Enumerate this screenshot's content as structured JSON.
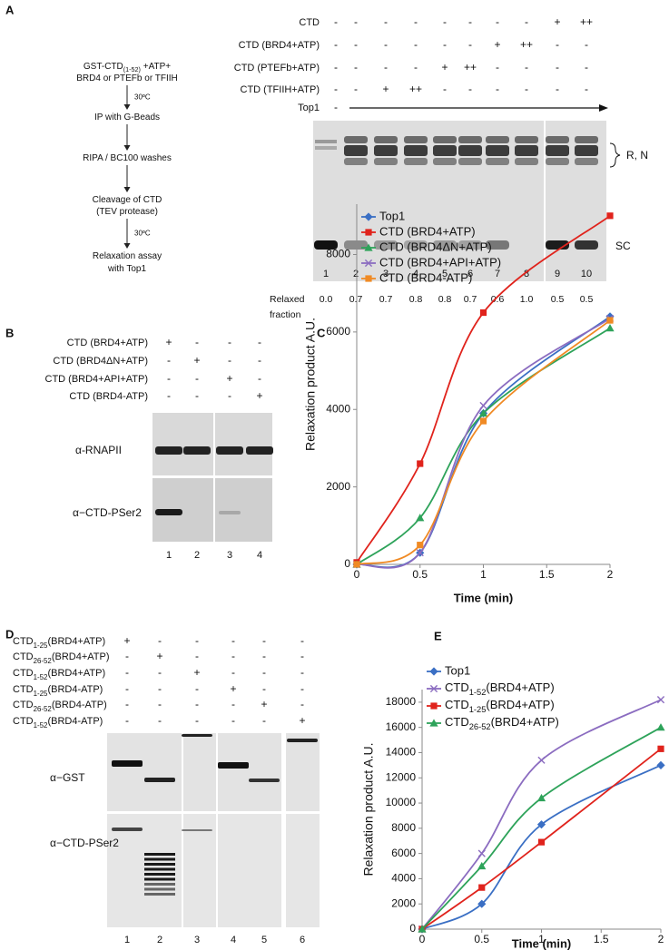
{
  "panel_a": {
    "label": "A",
    "flow": [
      {
        "lines": [
          [
            "GST-CTD",
            "(1-52)",
            " +ATP+"
          ],
          [
            "BRD4 or PTEFb or TFIIH"
          ]
        ],
        "arrow_label": "30ºC"
      },
      {
        "lines": [
          [
            "IP with G-Beads"
          ]
        ]
      },
      {
        "lines": [
          [
            "RIPA / BC100 washes"
          ]
        ]
      },
      {
        "lines": [
          [
            "Cleavage of CTD"
          ],
          [
            "(TEV protease)"
          ]
        ],
        "arrow_label": "30ºC"
      },
      {
        "lines": [
          [
            "Relaxation assay"
          ],
          [
            "with Top1"
          ]
        ]
      }
    ],
    "conditions": [
      {
        "label": "CTD",
        "marks": [
          "-",
          "-",
          "-",
          "-",
          "-",
          "-",
          "-",
          "-",
          "+",
          "++"
        ]
      },
      {
        "label": "CTD (BRD4+ATP)",
        "marks": [
          "-",
          "-",
          "-",
          "-",
          "-",
          "-",
          "+",
          "++",
          "-",
          "-"
        ]
      },
      {
        "label": "CTD (PTEFb+ATP)",
        "marks": [
          "-",
          "-",
          "-",
          "-",
          "+",
          "++",
          "-",
          "-",
          "-",
          "-"
        ]
      },
      {
        "label": "CTD (TFIIH+ATP)",
        "marks": [
          "-",
          "-",
          "+",
          "++",
          "-",
          "-",
          "-",
          "-",
          "-",
          "-"
        ]
      },
      {
        "label": "Top1",
        "marks": [
          "-"
        ]
      }
    ],
    "band_labels": [
      "R, N",
      "SC"
    ],
    "lanes": [
      "1",
      "2",
      "3",
      "4",
      "5",
      "6",
      "7",
      "8",
      "9",
      "10"
    ],
    "relaxed_label": [
      "Relaxed",
      "fraction"
    ],
    "relaxed_fraction": [
      "0.0",
      "0.7",
      "0.7",
      "0.8",
      "0.8",
      "0.7",
      "0.6",
      "1.0",
      "0.5",
      "0.5"
    ]
  },
  "panel_b": {
    "label": "B",
    "conditions": [
      {
        "label": "CTD (BRD4+ATP)",
        "marks": [
          "+",
          "-",
          "-",
          "-"
        ]
      },
      {
        "label": "CTD (BRD4ΔN+ATP)",
        "marks": [
          "-",
          "+",
          "-",
          "-"
        ]
      },
      {
        "label": "CTD (BRD4+API+ATP)",
        "marks": [
          "-",
          "-",
          "+",
          "-"
        ]
      },
      {
        "label": "CTD (BRD4-ATP)",
        "marks": [
          "-",
          "-",
          "-",
          "+"
        ]
      }
    ],
    "blots": [
      "α-RNAPII",
      "α−CTD-PSer2"
    ],
    "lanes": [
      "1",
      "2",
      "3",
      "4"
    ]
  },
  "panel_d": {
    "label": "D",
    "conditions": [
      {
        "label": [
          "CTD",
          "1-25",
          "(BRD4+ATP)"
        ],
        "marks": [
          "+",
          "-",
          "-",
          "-",
          "-",
          "-"
        ]
      },
      {
        "label": [
          "CTD",
          "26-52",
          "(BRD4+ATP)"
        ],
        "marks": [
          "-",
          "+",
          "-",
          "-",
          "-",
          "-"
        ]
      },
      {
        "label": [
          "CTD",
          "1-52",
          "(BRD4+ATP)"
        ],
        "marks": [
          "-",
          "-",
          "+",
          "-",
          "-",
          "-"
        ]
      },
      {
        "label": [
          "CTD",
          "1-25",
          "(BRD4-ATP)"
        ],
        "marks": [
          "-",
          "-",
          "-",
          "+",
          "-",
          "-"
        ]
      },
      {
        "label": [
          "CTD",
          "26-52",
          "(BRD4-ATP)"
        ],
        "marks": [
          "-",
          "-",
          "-",
          "-",
          "+",
          "-"
        ]
      },
      {
        "label": [
          "CTD",
          "1-52",
          "(BRD4-ATP)"
        ],
        "marks": [
          "-",
          "-",
          "-",
          "-",
          "-",
          "+"
        ]
      }
    ],
    "blots": [
      "α−GST",
      "α−CTD-PSer2"
    ],
    "lanes": [
      "1",
      "2",
      "3",
      "4",
      "5",
      "6"
    ]
  },
  "chart_data": [
    {
      "type": "line",
      "panel": "C",
      "x_label": "Time (min)",
      "y_label": "Relaxation product A.U.",
      "x": [
        0,
        0.5,
        1,
        2
      ],
      "xlim": [
        0,
        2
      ],
      "xticks": [
        0,
        0.5,
        1,
        1.5,
        2
      ],
      "ylim": [
        0,
        9300
      ],
      "yticks": [
        0,
        2000,
        4000,
        6000,
        8000
      ],
      "grid": false,
      "legend": "upper-left",
      "smooth": true,
      "series": [
        {
          "name": "Top1",
          "color": "#3a6fc4",
          "marker": "diamond",
          "values": [
            0,
            300,
            3900,
            6400
          ]
        },
        {
          "name": "CTD (BRD4+ATP)",
          "color": "#e0231c",
          "marker": "square",
          "values": [
            50,
            2600,
            6500,
            9000
          ]
        },
        {
          "name": "CTD (BRD4ΔN+ATP)",
          "color": "#2ea35a",
          "marker": "triangle",
          "values": [
            0,
            1200,
            3900,
            6100
          ]
        },
        {
          "name": "CTD (BRD4+API+ATP)",
          "color": "#8b6cc0",
          "marker": "x",
          "values": [
            0,
            300,
            4100,
            6350
          ]
        },
        {
          "name": "CTD (BRD4-ATP)",
          "color": "#f08a24",
          "marker": "square",
          "values": [
            0,
            500,
            3700,
            6300
          ]
        }
      ]
    },
    {
      "type": "line",
      "panel": "E",
      "x_label": "Time (min)",
      "y_label": "Relaxation product A.U.",
      "x": [
        0,
        0.5,
        1,
        2
      ],
      "xlim": [
        0,
        2
      ],
      "xticks": [
        0,
        0.5,
        1,
        1.5,
        2
      ],
      "ylim": [
        0,
        19000
      ],
      "yticks": [
        0,
        2000,
        4000,
        6000,
        8000,
        10000,
        12000,
        14000,
        16000,
        18000
      ],
      "grid": false,
      "legend": "upper-left",
      "smooth": true,
      "series": [
        {
          "name": "Top1",
          "color": "#3a6fc4",
          "marker": "diamond",
          "values": [
            0,
            2000,
            8300,
            13000
          ]
        },
        {
          "name": [
            "CTD",
            "1-52",
            "(BRD4+ATP)"
          ],
          "color": "#8b6cc0",
          "marker": "x",
          "values": [
            0,
            6000,
            13400,
            18200
          ]
        },
        {
          "name": [
            "CTD",
            "1-25",
            "(BRD4+ATP)"
          ],
          "color": "#e0231c",
          "marker": "square",
          "values": [
            0,
            3300,
            6900,
            14300
          ]
        },
        {
          "name": [
            "CTD",
            "26-52",
            "(BRD4+ATP)"
          ],
          "color": "#2ea35a",
          "marker": "triangle",
          "values": [
            0,
            5000,
            10400,
            16000
          ]
        }
      ]
    }
  ]
}
